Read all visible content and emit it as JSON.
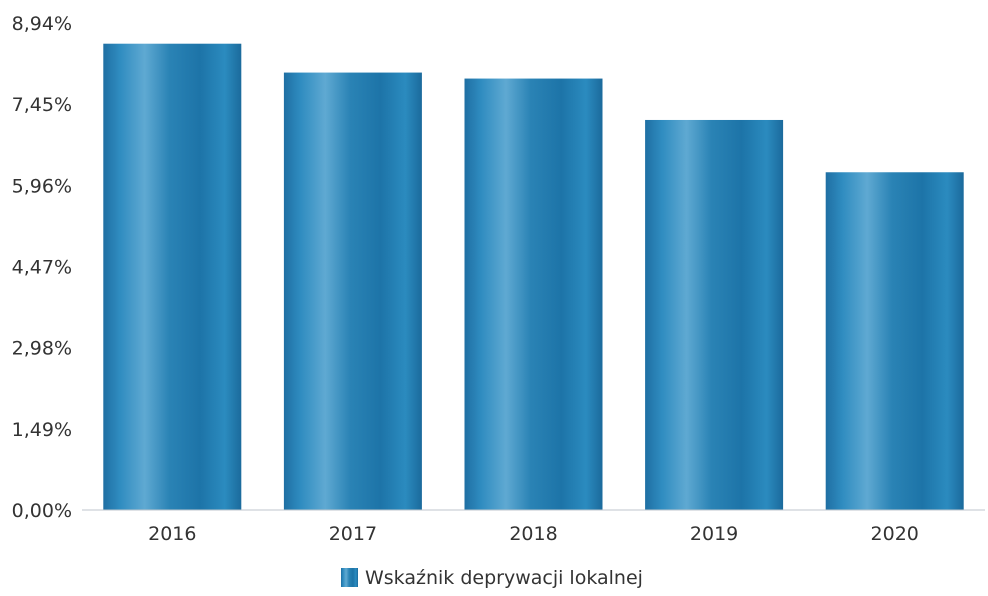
{
  "chart_data": {
    "type": "bar",
    "categories": [
      "2016",
      "2017",
      "2018",
      "2019",
      "2020"
    ],
    "series": [
      {
        "name": "Wskaźnik deprywacji lokalnej",
        "values": [
          8.56,
          8.03,
          7.92,
          7.16,
          6.2
        ],
        "color": "#2a83b5"
      }
    ],
    "y_ticks": [
      "0,00%",
      "1,49%",
      "2,98%",
      "4,47%",
      "5,96%",
      "7,45%",
      "8,94%"
    ],
    "ylim": [
      0,
      8.94
    ],
    "title": "",
    "xlabel": "",
    "ylabel": "",
    "grid": false,
    "legend_position": "bottom-center"
  }
}
